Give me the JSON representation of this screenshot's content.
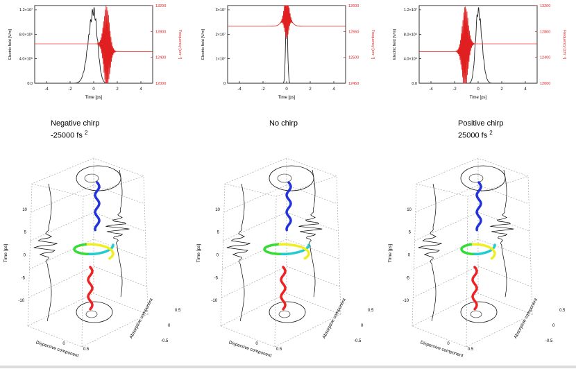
{
  "colors": {
    "field": "#222222",
    "frequency": "#e02020",
    "grid": "#9a9a9a",
    "traj_start": "#2233dd",
    "traj_mid1": "#22cccc",
    "traj_mid2": "#33dd33",
    "traj_mid3": "#eeee22",
    "traj_end": "#ee2222"
  },
  "panels": [
    {
      "caption_line1": "Negative chirp",
      "caption_line2": "-25000 fs",
      "caption_sup": "2",
      "ylabel_left": "Electric field [V/m]",
      "ylabel_right": "Frequency [cm⁻¹]",
      "xlabel": "Time [ps]",
      "xticks": [
        "-4",
        "-2",
        "0",
        "2",
        "4"
      ],
      "yticks_left": [
        "0.0",
        "4.0×10⁶",
        "8.0×10⁶",
        "1.2×10⁷"
      ],
      "yticks_right": [
        "12000",
        "12400",
        "12800",
        "13200"
      ],
      "ztick_labels": [
        "10",
        "5",
        "0",
        "-5",
        "-10"
      ],
      "z_label": "Time [ps]",
      "dispersive_label": "Dispersive component",
      "absorptive_label": "Absorptive component",
      "disp_ticks": [
        "0",
        "0.5"
      ],
      "abs_ticks": [
        "-0.5",
        "0",
        "0.5"
      ]
    },
    {
      "caption_line1": "No chirp",
      "caption_line2": "",
      "caption_sup": "",
      "ylabel_left": "Electric field [V/m]",
      "ylabel_right": "Frequency [cm⁻¹]",
      "xlabel": "Time [ps]",
      "xticks": [
        "-4",
        "-2",
        "0",
        "2",
        "4"
      ],
      "yticks_left": [
        "0",
        "1×10⁷",
        "2×10⁷",
        "3×10⁷"
      ],
      "yticks_right": [
        "12450",
        "12500",
        "12550",
        "12600"
      ],
      "ztick_labels": [
        "10",
        "5",
        "0",
        "-5",
        "-10"
      ],
      "z_label": "Time [ps]",
      "dispersive_label": "Dispersive component",
      "absorptive_label": "Absorptive component",
      "disp_ticks": [
        "0",
        "0.5"
      ],
      "abs_ticks": [
        "-0.5",
        "0",
        "0.5"
      ]
    },
    {
      "caption_line1": "Positive chirp",
      "caption_line2": "25000 fs",
      "caption_sup": "2",
      "ylabel_left": "Electric field [V/m]",
      "ylabel_right": "Frequency [cm⁻¹]",
      "xlabel": "Time [ps]",
      "xticks": [
        "-4",
        "-2",
        "0",
        "2",
        "4"
      ],
      "yticks_left": [
        "0.0",
        "4.0×10⁶",
        "8.0×10⁶",
        "1.2×10⁷"
      ],
      "yticks_right": [
        "12000",
        "12400",
        "12800",
        "13200"
      ],
      "ztick_labels": [
        "10",
        "5",
        "0",
        "-5",
        "-10"
      ],
      "z_label": "Time [ps]",
      "dispersive_label": "Dispersive component",
      "absorptive_label": "Absorptive component",
      "disp_ticks": [
        "0",
        "0.5"
      ],
      "abs_ticks": [
        "-0.5",
        "0",
        "0.5"
      ]
    }
  ],
  "chart_data": [
    {
      "type": "line",
      "panel": "Negative chirp",
      "xlabel": "Time [ps]",
      "ylabel": "Electric field [V/m]",
      "y2label": "Frequency [cm⁻¹]",
      "xlim": [
        -5,
        5
      ],
      "ylim": [
        0,
        14000000
      ],
      "y2lim": [
        12000,
        13200
      ],
      "field": {
        "center": 0,
        "width": 0.45,
        "peak": 13000000,
        "rise": 1.4
      },
      "frequency": {
        "baseline": 12550,
        "osc_center": 1.1,
        "osc_width": 0.35,
        "osc_amp": 650,
        "side": "right"
      }
    },
    {
      "type": "line",
      "panel": "No chirp",
      "xlabel": "Time [ps]",
      "ylabel": "Electric field [V/m]",
      "y2label": "Frequency [cm⁻¹]",
      "xlim": [
        -5,
        5
      ],
      "ylim": [
        0,
        30000000
      ],
      "y2lim": [
        12450,
        12600
      ],
      "field": {
        "center": 0,
        "width": 0.12,
        "peak": 27000000,
        "rise": 1.0
      },
      "frequency": {
        "baseline": 12560,
        "osc_center": 0,
        "osc_width": 0.25,
        "osc_amp": 45,
        "side": "center"
      }
    },
    {
      "type": "line",
      "panel": "Positive chirp",
      "xlabel": "Time [ps]",
      "ylabel": "Electric field [V/m]",
      "y2label": "Frequency [cm⁻¹]",
      "xlim": [
        -5,
        5
      ],
      "ylim": [
        0,
        14000000
      ],
      "y2lim": [
        12000,
        13200
      ],
      "field": {
        "center": 0,
        "width": 0.45,
        "peak": 13000000,
        "rise": 0.7
      },
      "frequency": {
        "baseline": 12550,
        "osc_center": -1.1,
        "osc_width": 0.35,
        "osc_amp": 650,
        "side": "left"
      }
    }
  ]
}
